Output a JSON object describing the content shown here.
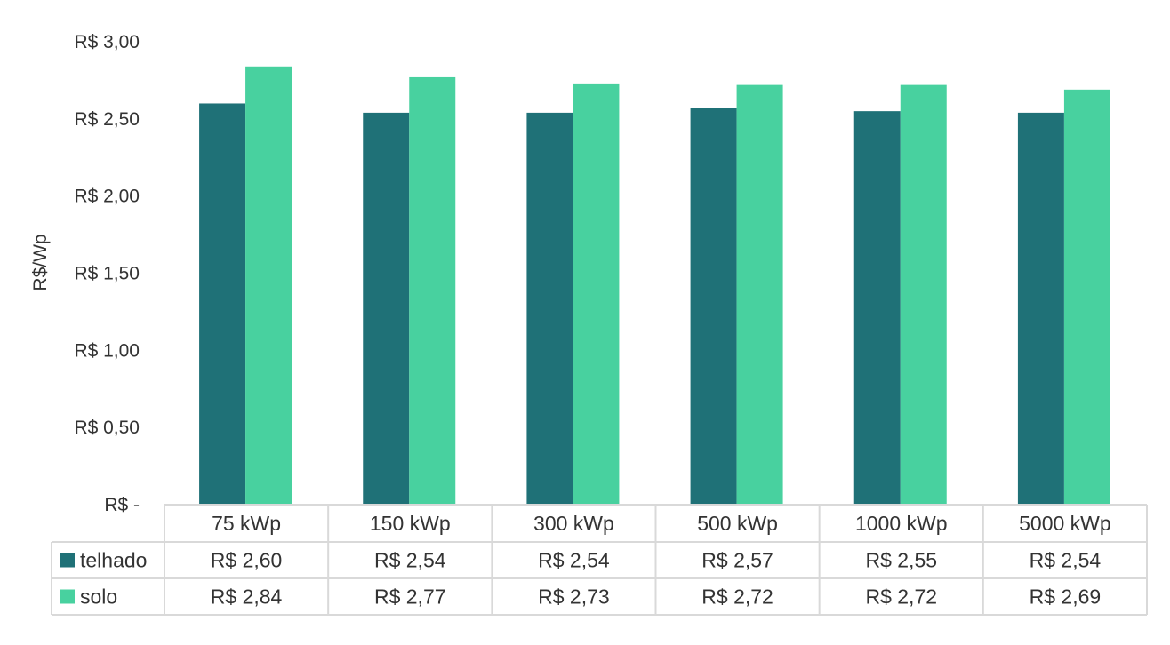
{
  "chart_data": {
    "type": "bar",
    "ylabel": "R$/Wp",
    "ylim": [
      0,
      3.0
    ],
    "y_ticks": [
      0,
      0.5,
      1.0,
      1.5,
      2.0,
      2.5,
      3.0
    ],
    "y_tick_labels": [
      "R$ -",
      "R$ 0,50",
      "R$ 1,00",
      "R$ 1,50",
      "R$ 2,00",
      "R$ 2,50",
      "R$ 3,00"
    ],
    "grid": false,
    "legend_placement": "data-table",
    "categories": [
      "75 kWp",
      "150 kWp",
      "300 kWp",
      "500 kWp",
      "1000 kWp",
      "5000 kWp"
    ],
    "series": [
      {
        "name": "telhado",
        "color": "#1f7177",
        "values": [
          2.6,
          2.54,
          2.54,
          2.57,
          2.55,
          2.54
        ],
        "labels": [
          "R$ 2,60",
          "R$ 2,54",
          "R$ 2,54",
          "R$ 2,57",
          "R$ 2,55",
          "R$ 2,54"
        ]
      },
      {
        "name": "solo",
        "color": "#48d19f",
        "values": [
          2.84,
          2.77,
          2.73,
          2.72,
          2.72,
          2.69
        ],
        "labels": [
          "R$ 2,84",
          "R$ 2,77",
          "R$ 2,73",
          "R$ 2,72",
          "R$ 2,72",
          "R$ 2,69"
        ]
      }
    ]
  }
}
